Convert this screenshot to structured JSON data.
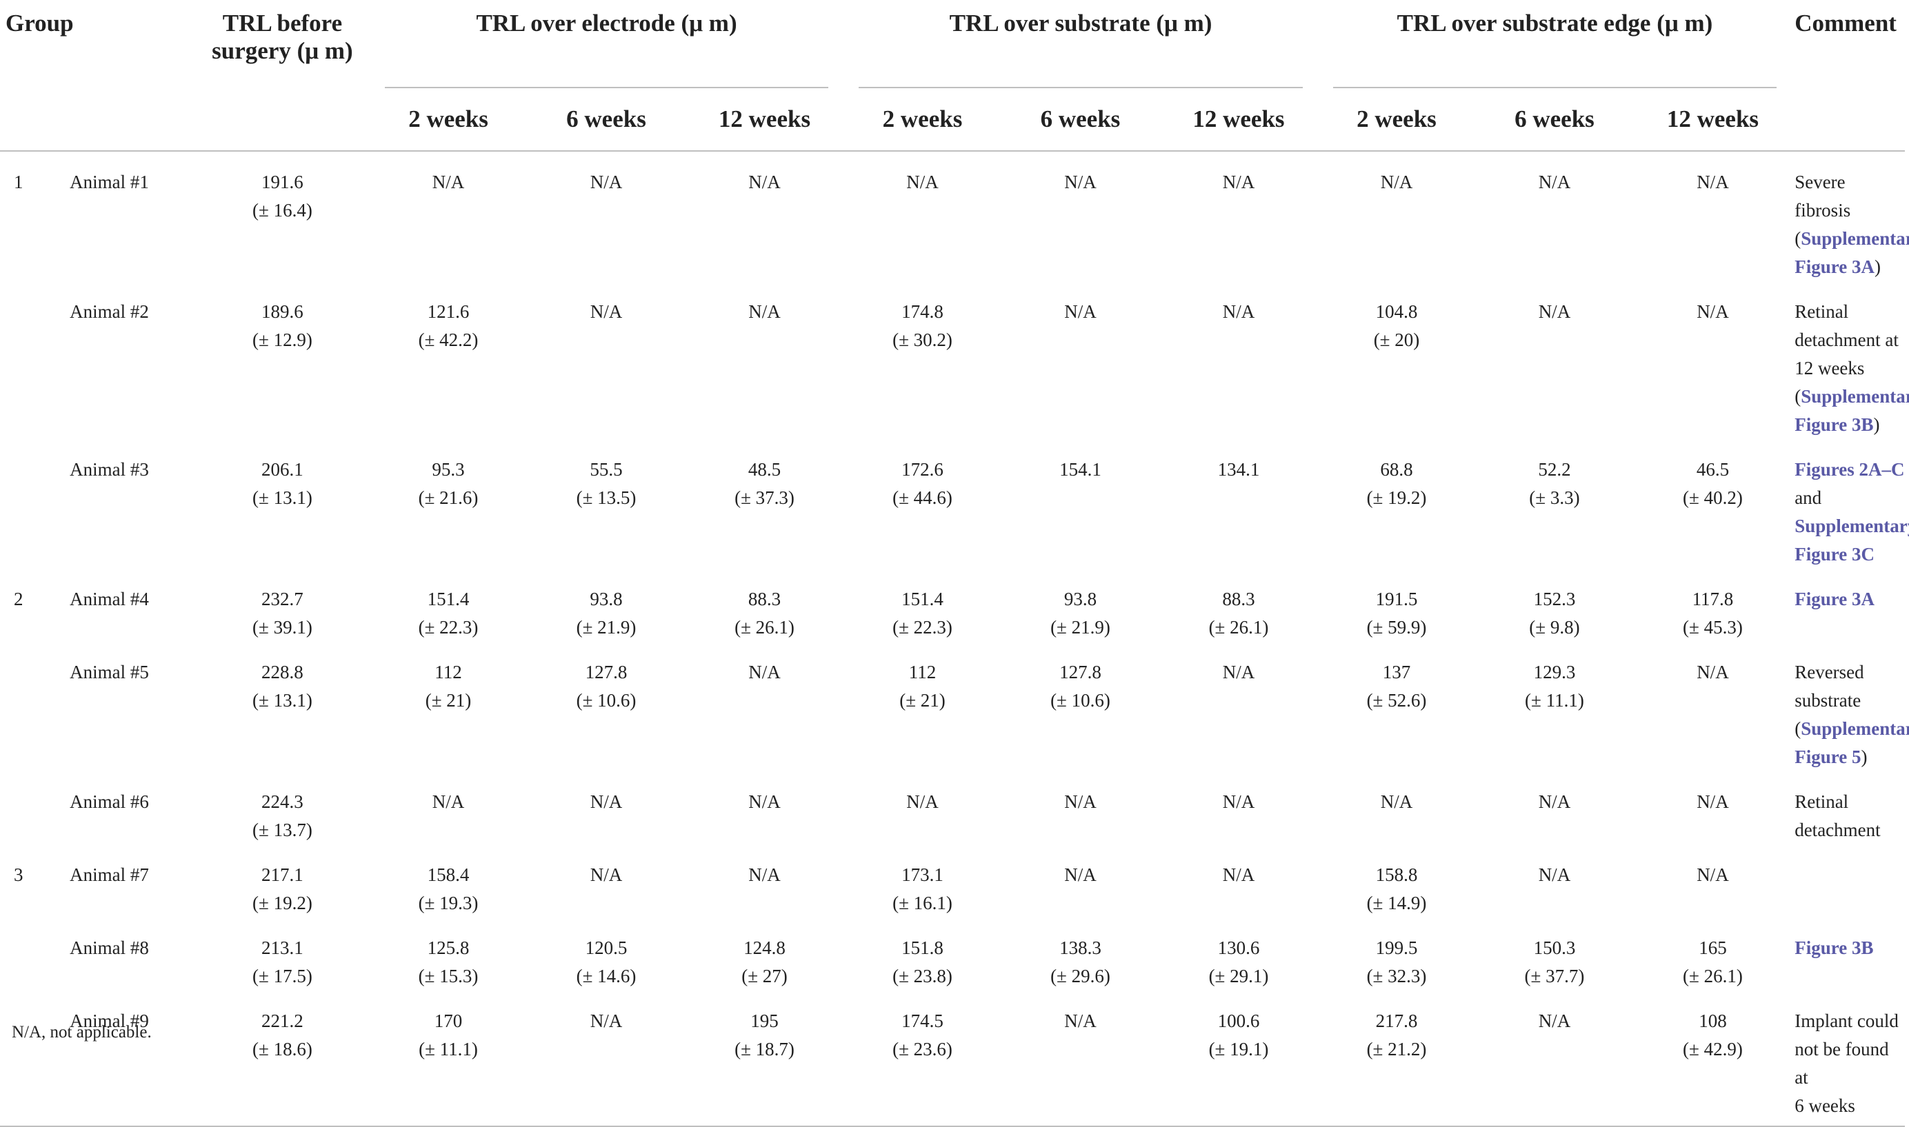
{
  "headers": {
    "group": "Group",
    "before": "TRL before surgery (μ m)",
    "electrode": "TRL over electrode (μ m)",
    "substrate": "TRL over substrate (μ m)",
    "edge": "TRL over substrate edge (μ m)",
    "comment": "Comment",
    "weeks": [
      "2 weeks",
      "6 weeks",
      "12 weeks"
    ]
  },
  "rows": [
    {
      "group": "1",
      "animal": "Animal #1",
      "before": [
        "191.6",
        "(± 16.4)"
      ],
      "electrode": [
        [
          "N/A"
        ],
        [
          "N/A"
        ],
        [
          "N/A"
        ]
      ],
      "substrate": [
        [
          "N/A"
        ],
        [
          "N/A"
        ],
        [
          "N/A"
        ]
      ],
      "edge": [
        [
          "N/A"
        ],
        [
          "N/A"
        ],
        [
          "N/A"
        ]
      ],
      "comment": [
        {
          "t": "Severe fibrosis",
          "link": false
        },
        {
          "t": "(",
          "link": false,
          "inline": true
        },
        {
          "t": "Supplementary",
          "link": true,
          "inline": true
        },
        {
          "t": "Figure 3A",
          "link": true
        },
        {
          "t": ")",
          "link": false,
          "inline": true
        }
      ],
      "comment_text": [
        "Severe fibrosis",
        "(",
        "Supplementary",
        "Figure 3A",
        ")"
      ]
    },
    {
      "group": "",
      "animal": "Animal #2",
      "before": [
        "189.6",
        "(± 12.9)"
      ],
      "electrode": [
        [
          "121.6",
          "(± 42.2)"
        ],
        [
          "N/A"
        ],
        [
          "N/A"
        ]
      ],
      "substrate": [
        [
          "174.8",
          "(± 30.2)"
        ],
        [
          "N/A"
        ],
        [
          "N/A"
        ]
      ],
      "edge": [
        [
          "104.8",
          "(± 20)"
        ],
        [
          "N/A"
        ],
        [
          "N/A"
        ]
      ],
      "comment_text": [
        "Retinal",
        "detachment at",
        "12 weeks",
        "(",
        "Supplementary",
        "Figure 3B",
        ")"
      ]
    },
    {
      "group": "",
      "animal": "Animal #3",
      "before": [
        "206.1",
        "(± 13.1)"
      ],
      "electrode": [
        [
          "95.3",
          "(± 21.6)"
        ],
        [
          "55.5",
          "(± 13.5)"
        ],
        [
          "48.5",
          "(± 37.3)"
        ]
      ],
      "substrate": [
        [
          "172.6",
          "(± 44.6)"
        ],
        [
          "154.1"
        ],
        [
          "134.1"
        ]
      ],
      "edge": [
        [
          "68.8",
          "(± 19.2)"
        ],
        [
          "52.2",
          "(± 3.3)"
        ],
        [
          "46.5",
          "(± 40.2)"
        ]
      ],
      "comment_text": [
        "Figures 2A–C",
        "and",
        "Supplementary",
        "Figure 3C"
      ]
    },
    {
      "group": "2",
      "animal": "Animal #4",
      "before": [
        "232.7",
        "(± 39.1)"
      ],
      "electrode": [
        [
          "151.4",
          "(± 22.3)"
        ],
        [
          "93.8",
          "(± 21.9)"
        ],
        [
          "88.3",
          "(± 26.1)"
        ]
      ],
      "substrate": [
        [
          "151.4",
          "(± 22.3)"
        ],
        [
          "93.8",
          "(± 21.9)"
        ],
        [
          "88.3",
          "(± 26.1)"
        ]
      ],
      "edge": [
        [
          "191.5",
          "(± 59.9)"
        ],
        [
          "152.3",
          "(± 9.8)"
        ],
        [
          "117.8",
          "(± 45.3)"
        ]
      ],
      "comment_text": [
        "Figure 3A"
      ]
    },
    {
      "group": "",
      "animal": "Animal #5",
      "before": [
        "228.8",
        "(± 13.1)"
      ],
      "electrode": [
        [
          "112",
          "(± 21)"
        ],
        [
          "127.8",
          "(± 10.6)"
        ],
        [
          "N/A"
        ]
      ],
      "substrate": [
        [
          "112",
          "(± 21)"
        ],
        [
          "127.8",
          "(± 10.6)"
        ],
        [
          "N/A"
        ]
      ],
      "edge": [
        [
          "137",
          "(± 52.6)"
        ],
        [
          "129.3",
          "(± 11.1)"
        ],
        [
          "N/A"
        ]
      ],
      "comment_text": [
        "Reversed",
        "substrate",
        "(",
        "Supplementary",
        "Figure 5",
        ")"
      ]
    },
    {
      "group": "",
      "animal": "Animal #6",
      "before": [
        "224.3",
        "(± 13.7)"
      ],
      "electrode": [
        [
          "N/A"
        ],
        [
          "N/A"
        ],
        [
          "N/A"
        ]
      ],
      "substrate": [
        [
          "N/A"
        ],
        [
          "N/A"
        ],
        [
          "N/A"
        ]
      ],
      "edge": [
        [
          "N/A"
        ],
        [
          "N/A"
        ],
        [
          "N/A"
        ]
      ],
      "comment_text": [
        "Retinal",
        "detachment"
      ]
    },
    {
      "group": "3",
      "animal": "Animal #7",
      "before": [
        "217.1",
        "(± 19.2)"
      ],
      "electrode": [
        [
          "158.4",
          "(± 19.3)"
        ],
        [
          "N/A"
        ],
        [
          "N/A"
        ]
      ],
      "substrate": [
        [
          "173.1",
          "(± 16.1)"
        ],
        [
          "N/A"
        ],
        [
          "N/A"
        ]
      ],
      "edge": [
        [
          "158.8",
          "(± 14.9)"
        ],
        [
          "N/A"
        ],
        [
          "N/A"
        ]
      ],
      "comment_text": []
    },
    {
      "group": "",
      "animal": "Animal #8",
      "before": [
        "213.1",
        "(± 17.5)"
      ],
      "electrode": [
        [
          "125.8",
          "(± 15.3)"
        ],
        [
          "120.5",
          "(± 14.6)"
        ],
        [
          "124.8",
          "(± 27)"
        ]
      ],
      "substrate": [
        [
          "151.8",
          "(± 23.8)"
        ],
        [
          "138.3",
          "(± 29.6)"
        ],
        [
          "130.6",
          "(± 29.1)"
        ]
      ],
      "edge": [
        [
          "199.5",
          "(± 32.3)"
        ],
        [
          "150.3",
          "(± 37.7)"
        ],
        [
          "165",
          "(± 26.1)"
        ]
      ],
      "comment_text": [
        "Figure 3B"
      ]
    },
    {
      "group": "",
      "animal": "Animal #9",
      "before": [
        "221.2",
        "(± 18.6)"
      ],
      "electrode": [
        [
          "170",
          "(± 11.1)"
        ],
        [
          "N/A"
        ],
        [
          "195",
          "(± 18.7)"
        ]
      ],
      "substrate": [
        [
          "174.5",
          "(± 23.6)"
        ],
        [
          "N/A"
        ],
        [
          "100.6",
          "(± 19.1)"
        ]
      ],
      "edge": [
        [
          "217.8",
          "(± 21.2)"
        ],
        [
          "N/A"
        ],
        [
          "108",
          "(± 42.9)"
        ]
      ],
      "comment_text": [
        "Implant could",
        "not be found at",
        "6 weeks"
      ]
    }
  ],
  "footnote": "N/A, not applicable.",
  "colors": {
    "link": "#5a5aa6",
    "rule": "#bfbfbf",
    "text": "#222222"
  }
}
